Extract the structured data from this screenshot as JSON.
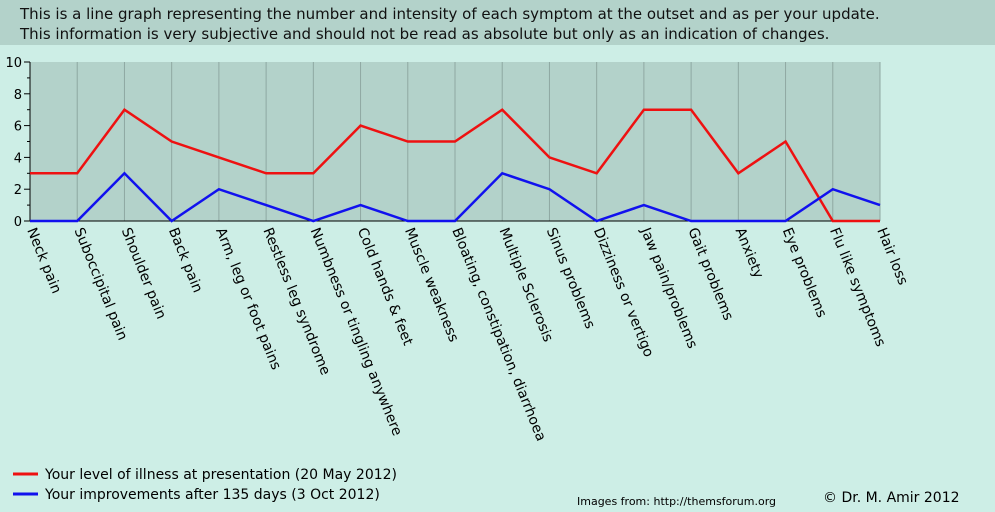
{
  "header": {
    "line1": "This is a line graph representing the number and intensity of each symptom at the outset and as per your update.",
    "line2": "This information is very subjective and should not be read as absolute but only as an indication of changes."
  },
  "chart_data": {
    "type": "line",
    "categories": [
      "Neck pain",
      "Suboccipital pain",
      "Shoulder pain",
      "Back pain",
      "Arm, leg or foot pains",
      "Restless leg syndrome",
      "Numbness or tingling anywhere",
      "Cold hands & feet",
      "Muscle weakness",
      "Bloating, constipation, diarrhoea",
      "Multiple Sclerosis",
      "Sinus problems",
      "Dizziness or vertigo",
      "Jaw pain/problems",
      "Gait problems",
      "Anxiety",
      "Eye problems",
      "Flu like symptoms",
      "Hair loss"
    ],
    "series": [
      {
        "name": "Your level of illness at presentation (20 May 2012)",
        "color": "#ee1111",
        "values": [
          3,
          3,
          7,
          5,
          4,
          3,
          3,
          6,
          5,
          5,
          7,
          4,
          3,
          7,
          7,
          3,
          5,
          0,
          0
        ]
      },
      {
        "name": "Your improvements after 135 days (3 Oct 2012)",
        "color": "#1111ee",
        "values": [
          0,
          0,
          3,
          0,
          2,
          1,
          0,
          1,
          0,
          0,
          3,
          2,
          0,
          1,
          0,
          0,
          0,
          2,
          1
        ]
      }
    ],
    "ylim": [
      0,
      10
    ],
    "yticks": [
      "0",
      "2",
      "4",
      "6",
      "8",
      "10"
    ],
    "grid": "vertical",
    "legend": "bottom-left"
  },
  "footer": {
    "credit": "Images from: http://themsforum.org",
    "copyright": "© Dr. M. Amir 2012"
  }
}
